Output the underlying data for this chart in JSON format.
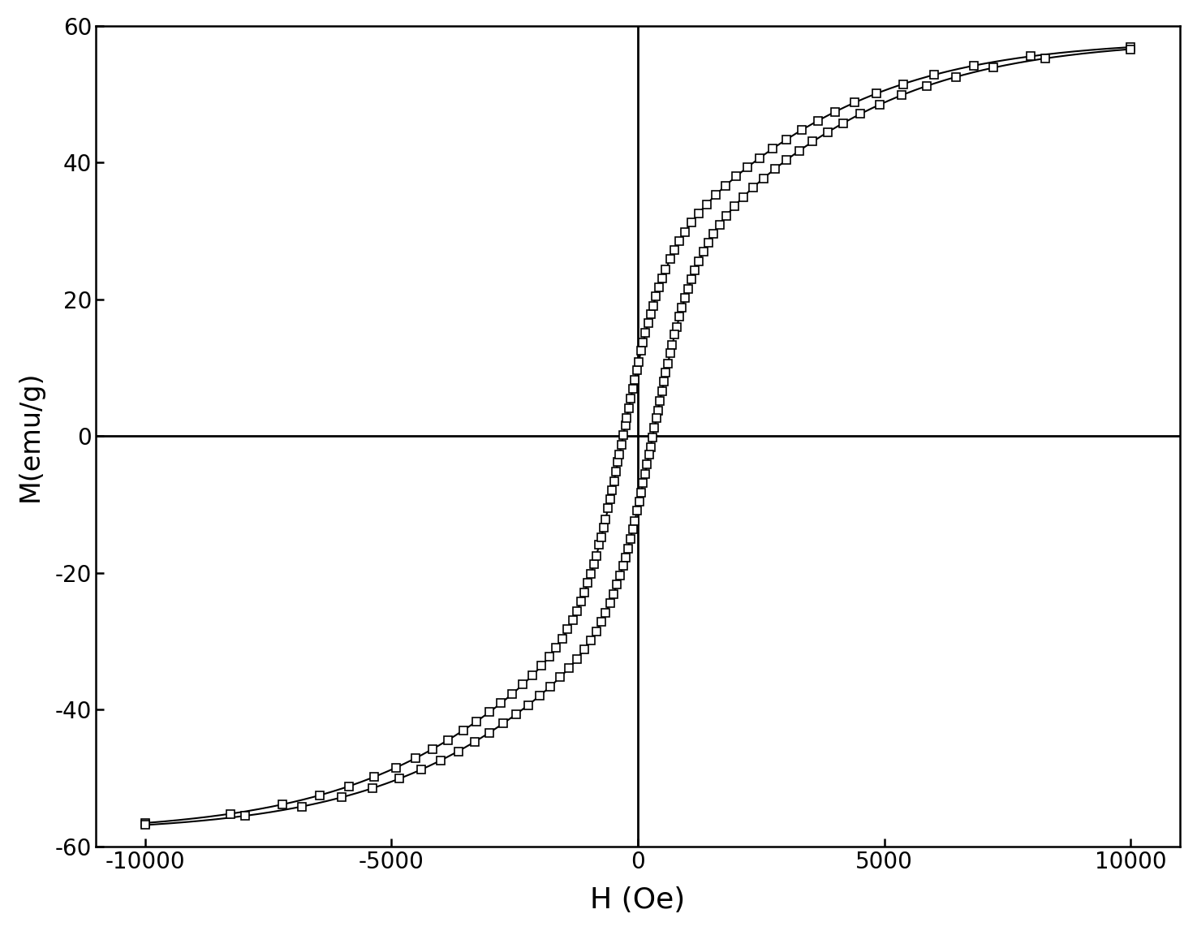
{
  "title": "",
  "xlabel": "H (Oe)",
  "ylabel": "M(emu/g)",
  "xlim": [
    -11000,
    11000
  ],
  "ylim": [
    -60,
    60
  ],
  "xticks": [
    -10000,
    -5000,
    0,
    5000,
    10000
  ],
  "yticks": [
    -60,
    -40,
    -20,
    0,
    20,
    40,
    60
  ],
  "background_color": "#ffffff",
  "line_color": "#000000",
  "marker_size": 7,
  "marker_facecolor": "#ffffff",
  "marker_edgecolor": "#000000",
  "marker_edgewidth": 1.2,
  "linewidth": 1.5,
  "axis_linewidth": 1.8,
  "cross_linewidth": 2.0,
  "Ms": 58,
  "Hc_upper": 300,
  "Hc_lower": 300,
  "a_upper": 1800,
  "a_lower": 3500,
  "n_markers": 85,
  "xlabel_fontsize": 26,
  "ylabel_fontsize": 24,
  "tick_fontsize": 20
}
